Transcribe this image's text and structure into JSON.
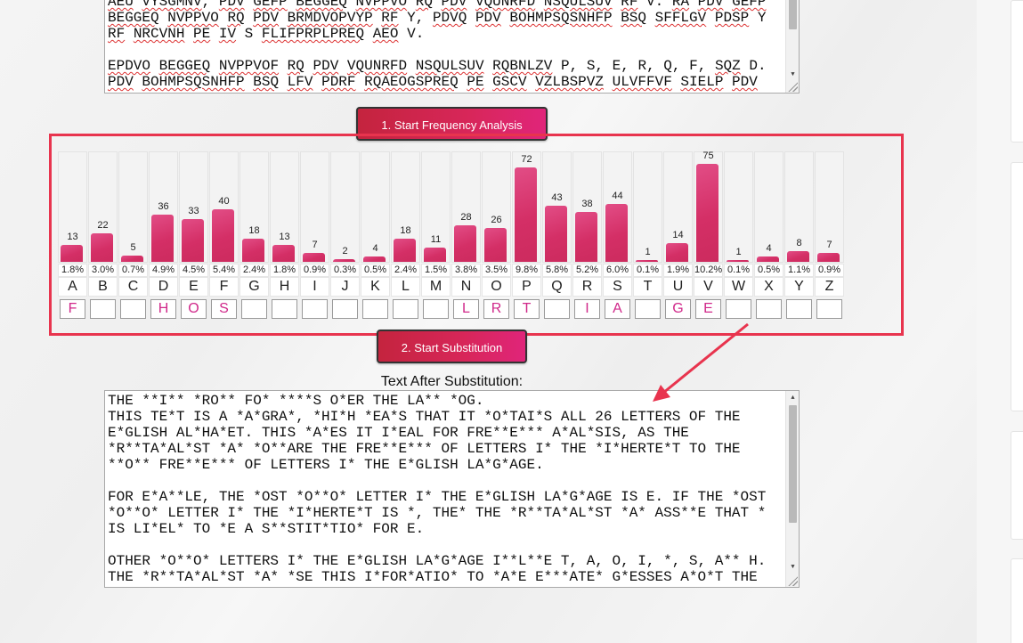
{
  "cipher_text": [
    {
      "parts": [
        "AEU VYSGMNV, PDV GEFP BEGGEQ NVPPVO RQ PDV VQUNRFD NSQULSUV RF V. RA PDV GEFP"
      ]
    },
    {
      "parts": [
        "BEGGEQ NVPPVO RQ PDV BRMDVOPVYP RF Y, PDVQ PDV BOHMPSQSNHFP BSQ SFFLGV PDSP Y"
      ]
    },
    {
      "parts": [
        "RF NRCVNH PE IV S FLIFPRPLPREQ AEO V."
      ]
    },
    {
      "parts": [
        ""
      ]
    },
    {
      "parts": [
        "EPDVO BEGGEQ NVPPVOF RQ PDV VQUNRFD NSQULSUV RQBNLZV P, S, E, R, Q, F, SQZ D."
      ]
    },
    {
      "parts": [
        "PDV BOHMPSQSNHFP BSQ LFV PDRF RQAEOGSPREQ PE GSCV VZLBSPVZ ULVFFVF SIELP PDV"
      ]
    }
  ],
  "buttons": {
    "start_frequency": "1. Start Frequency Analysis",
    "start_substitution": "2. Start Substitution"
  },
  "labels": {
    "text_after": "Text After Substitution:"
  },
  "frequency": [
    {
      "letter": "A",
      "count": "13",
      "pct": "1.8%",
      "sub": "F"
    },
    {
      "letter": "B",
      "count": "22",
      "pct": "3.0%",
      "sub": ""
    },
    {
      "letter": "C",
      "count": "5",
      "pct": "0.7%",
      "sub": ""
    },
    {
      "letter": "D",
      "count": "36",
      "pct": "4.9%",
      "sub": "H"
    },
    {
      "letter": "E",
      "count": "33",
      "pct": "4.5%",
      "sub": "O"
    },
    {
      "letter": "F",
      "count": "40",
      "pct": "5.4%",
      "sub": "S"
    },
    {
      "letter": "G",
      "count": "18",
      "pct": "2.4%",
      "sub": ""
    },
    {
      "letter": "H",
      "count": "13",
      "pct": "1.8%",
      "sub": ""
    },
    {
      "letter": "I",
      "count": "7",
      "pct": "0.9%",
      "sub": ""
    },
    {
      "letter": "J",
      "count": "2",
      "pct": "0.3%",
      "sub": ""
    },
    {
      "letter": "K",
      "count": "4",
      "pct": "0.5%",
      "sub": ""
    },
    {
      "letter": "L",
      "count": "18",
      "pct": "2.4%",
      "sub": ""
    },
    {
      "letter": "M",
      "count": "11",
      "pct": "1.5%",
      "sub": ""
    },
    {
      "letter": "N",
      "count": "28",
      "pct": "3.8%",
      "sub": "L"
    },
    {
      "letter": "O",
      "count": "26",
      "pct": "3.5%",
      "sub": "R"
    },
    {
      "letter": "P",
      "count": "72",
      "pct": "9.8%",
      "sub": "T"
    },
    {
      "letter": "Q",
      "count": "43",
      "pct": "5.8%",
      "sub": ""
    },
    {
      "letter": "R",
      "count": "38",
      "pct": "5.2%",
      "sub": "I"
    },
    {
      "letter": "S",
      "count": "44",
      "pct": "6.0%",
      "sub": "A"
    },
    {
      "letter": "T",
      "count": "1",
      "pct": "0.1%",
      "sub": ""
    },
    {
      "letter": "U",
      "count": "14",
      "pct": "1.9%",
      "sub": "G"
    },
    {
      "letter": "V",
      "count": "75",
      "pct": "10.2%",
      "sub": "E"
    },
    {
      "letter": "W",
      "count": "1",
      "pct": "0.1%",
      "sub": ""
    },
    {
      "letter": "X",
      "count": "4",
      "pct": "0.5%",
      "sub": ""
    },
    {
      "letter": "Y",
      "count": "8",
      "pct": "1.1%",
      "sub": ""
    },
    {
      "letter": "Z",
      "count": "7",
      "pct": "0.9%",
      "sub": ""
    }
  ],
  "plain_text": [
    "THE **I** *RO** FO* ****S O*ER THE LA** *OG.",
    "THIS TE*T IS A *A*GRA*, *HI*H *EA*S THAT IT *O*TAI*S ALL 26 LETTERS OF THE",
    "E*GLISH AL*HA*ET. THIS *A*ES IT I*EAL FOR FRE**E*** A*AL*SIS, AS THE",
    "*R**TA*AL*ST *A* *O**ARE THE FRE**E*** OF LETTERS I* THE *I*HERTE*T TO THE",
    "**O** FRE**E*** OF LETTERS I* THE E*GLISH LA*G*AGE.",
    "",
    "FOR E*A**LE, THE *OST *O**O* LETTER I* THE E*GLISH LA*G*AGE IS E. IF THE *OST",
    "*O**O* LETTER I* THE *I*HERTE*T IS *, THE* THE *R**TA*AL*ST *A* ASS**E THAT *",
    "IS LI*EL* TO *E A S**STIT*TIO* FOR E.",
    "",
    "OTHER *O**O* LETTERS I* THE E*GLISH LA*G*AGE I**L**E T, A, O, I, *, S, A** H.",
    "THE *R**TA*AL*ST *A* *SE THIS I*FOR*ATIO* TO *A*E E***ATE* G*ESSES A*O*T THE"
  ]
}
